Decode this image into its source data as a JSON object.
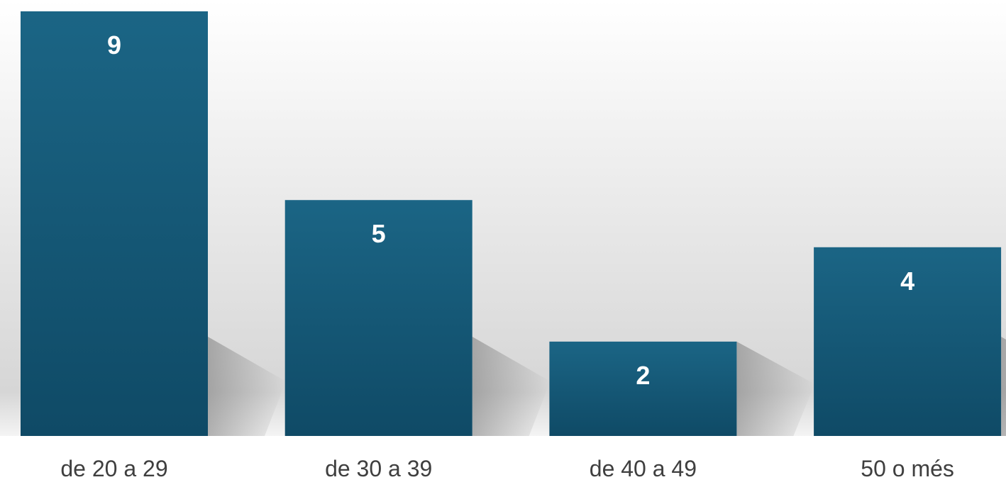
{
  "chart_data": {
    "type": "bar",
    "categories": [
      "de 20 a 29",
      "de 30 a 39",
      "de 40 a 49",
      "50 o més"
    ],
    "values": [
      9,
      5,
      2,
      4
    ],
    "data_labels": [
      "9",
      "5",
      "2",
      "4"
    ],
    "title": "",
    "xlabel": "",
    "ylabel": "",
    "ylim": [
      0,
      9
    ],
    "grid": false,
    "legend": "none",
    "colors": {
      "bar_top": "#1b6585",
      "bar_bottom": "#0f4a66",
      "background_top": "#ffffff",
      "background_bottom": "#d9d9d9",
      "value_label": "#ffffff",
      "category_label": "#3f3f3f"
    }
  }
}
